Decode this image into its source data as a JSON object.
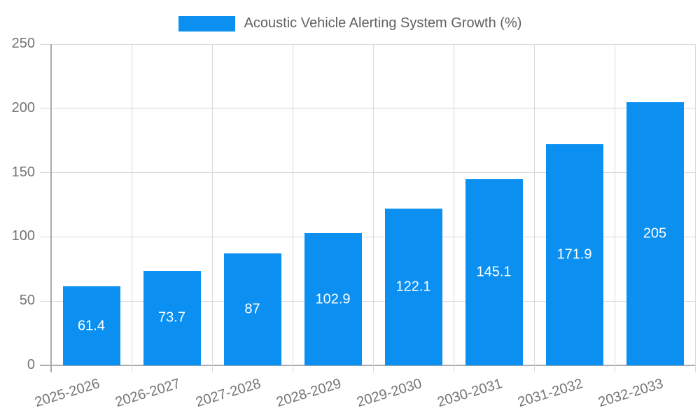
{
  "legend": {
    "label": "Acoustic Vehicle Alerting System Growth (%)"
  },
  "colors": {
    "bar": "#0b90f2",
    "bar_label": "#ffffff",
    "grid": "#d9d9d9",
    "axis": "#ababab",
    "tick_label": "#757575",
    "legend_label": "#616161",
    "background": "#ffffff"
  },
  "chart_data": {
    "type": "bar",
    "title": "Acoustic Vehicle Alerting System Growth (%)",
    "categories": [
      "2025-2026",
      "2026-2027",
      "2027-2028",
      "2028-2029",
      "2029-2030",
      "2030-2031",
      "2031-2032",
      "2032-2033"
    ],
    "values": [
      61.4,
      73.7,
      87,
      102.9,
      122.1,
      145.1,
      171.9,
      205
    ],
    "value_labels": [
      "61.4",
      "73.7",
      "87",
      "102.9",
      "122.1",
      "145.1",
      "171.9",
      "205"
    ],
    "xlabel": "",
    "ylabel": "",
    "ylim": [
      0,
      250
    ],
    "yticks": [
      0,
      50,
      100,
      150,
      200,
      250
    ],
    "grid": true,
    "legend_position": "top",
    "x_tick_rotation_deg": -17
  }
}
